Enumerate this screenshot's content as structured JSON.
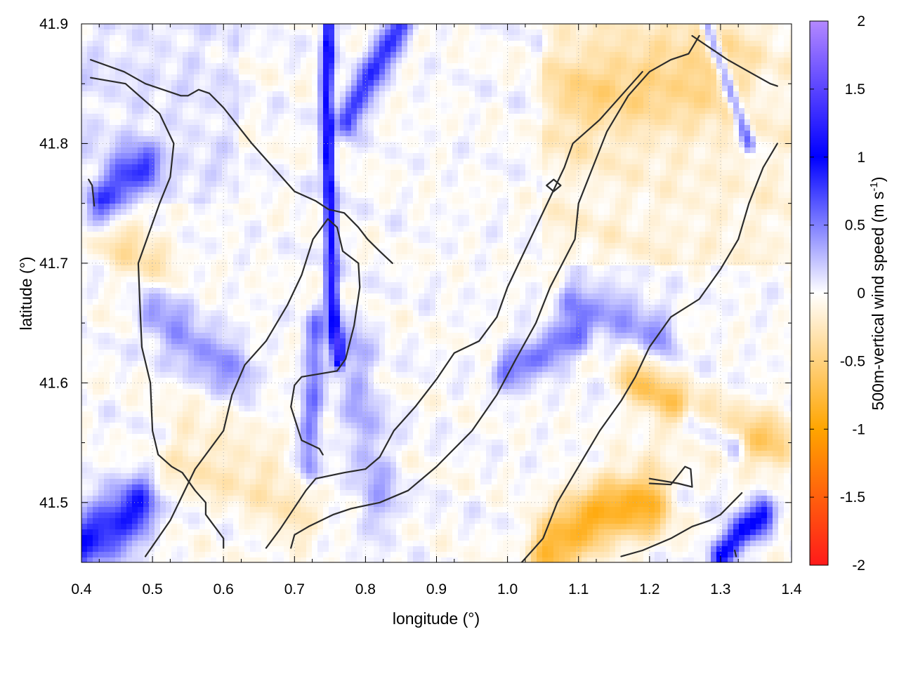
{
  "chart_data": {
    "type": "heatmap",
    "xlabel": "longitude (°)",
    "ylabel": "latitude (°)",
    "xlim": [
      0.4,
      1.4
    ],
    "ylim": [
      41.45,
      41.9
    ],
    "xticks": [
      "0.4",
      "0.5",
      "0.6",
      "0.7",
      "0.8",
      "0.9",
      "1.0",
      "1.1",
      "1.2",
      "1.3",
      "1.4"
    ],
    "yticks": [
      "41.5",
      "41.6",
      "41.7",
      "41.8",
      "41.9"
    ],
    "colorbar": {
      "label_main": "500m-vertical wind speed (m s",
      "label_sup": "-1",
      "label_end": ")",
      "range": [
        -2,
        2
      ],
      "ticks": [
        "-2",
        "-1.5",
        "-1",
        "-0.5",
        "0",
        "0.5",
        "1",
        "1.5",
        "2"
      ],
      "colors": [
        {
          "value": -2,
          "color": "#ff1a1a"
        },
        {
          "value": -1,
          "color": "#ffa500"
        },
        {
          "value": 0,
          "color": "#ffffff"
        },
        {
          "value": 1,
          "color": "#0000ff"
        },
        {
          "value": 2,
          "color": "#b388ff"
        }
      ]
    },
    "features": [
      {
        "kind": "ridge",
        "sign": 1,
        "amplitude": 1.15,
        "width": 0.006,
        "path": [
          [
            0.748,
            41.9
          ],
          [
            0.745,
            41.84
          ],
          [
            0.748,
            41.78
          ],
          [
            0.752,
            41.72
          ],
          [
            0.752,
            41.68
          ],
          [
            0.758,
            41.64
          ],
          [
            0.762,
            41.62
          ]
        ]
      },
      {
        "kind": "ridge",
        "sign": 1,
        "amplitude": 0.85,
        "width": 0.01,
        "path": [
          [
            0.775,
            41.82
          ],
          [
            0.81,
            41.86
          ],
          [
            0.85,
            41.9
          ]
        ]
      },
      {
        "kind": "ridge",
        "sign": 1,
        "amplitude": 0.7,
        "width": 0.006,
        "path": [
          [
            1.28,
            41.9
          ],
          [
            1.31,
            41.85
          ],
          [
            1.34,
            41.8
          ]
        ]
      },
      {
        "kind": "ridge",
        "sign": 1,
        "amplitude": 0.9,
        "width": 0.018,
        "path": [
          [
            0.4,
            41.465
          ],
          [
            0.44,
            41.48
          ],
          [
            0.48,
            41.495
          ]
        ]
      },
      {
        "kind": "ridge",
        "sign": 1,
        "amplitude": 0.7,
        "width": 0.014,
        "path": [
          [
            0.43,
            41.75
          ],
          [
            0.46,
            41.77
          ],
          [
            0.49,
            41.78
          ]
        ]
      },
      {
        "kind": "ridge",
        "sign": 1,
        "amplitude": 0.5,
        "width": 0.01,
        "path": [
          [
            0.73,
            41.65
          ],
          [
            0.725,
            41.58
          ],
          [
            0.72,
            41.53
          ]
        ]
      },
      {
        "kind": "ridge",
        "sign": 1,
        "amplitude": 0.3,
        "width": 0.02,
        "path": [
          [
            0.78,
            41.63
          ],
          [
            0.8,
            41.56
          ],
          [
            0.82,
            41.5
          ]
        ]
      },
      {
        "kind": "ridge",
        "sign": 1,
        "amplitude": 0.55,
        "width": 0.012,
        "path": [
          [
            1.0,
            41.61
          ],
          [
            1.05,
            41.625
          ],
          [
            1.1,
            41.64
          ]
        ]
      },
      {
        "kind": "ridge",
        "sign": 1,
        "amplitude": 0.45,
        "width": 0.012,
        "path": [
          [
            1.09,
            41.67
          ],
          [
            1.15,
            41.66
          ],
          [
            1.22,
            41.64
          ]
        ]
      },
      {
        "kind": "ridge",
        "sign": 1,
        "amplitude": 0.6,
        "width": 0.01,
        "path": [
          [
            1.26,
            41.57
          ],
          [
            1.29,
            41.56
          ],
          [
            1.32,
            41.55
          ]
        ]
      },
      {
        "kind": "ridge",
        "sign": 1,
        "amplitude": 1.0,
        "width": 0.01,
        "path": [
          [
            1.3,
            41.455
          ],
          [
            1.33,
            41.475
          ],
          [
            1.36,
            41.49
          ]
        ]
      },
      {
        "kind": "ridge",
        "sign": 1,
        "amplitude": 0.45,
        "width": 0.015,
        "path": [
          [
            0.5,
            41.66
          ],
          [
            0.56,
            41.63
          ],
          [
            0.62,
            41.61
          ]
        ]
      },
      {
        "kind": "ridge",
        "sign": -1,
        "amplitude": 0.85,
        "width": 0.02,
        "path": [
          [
            1.06,
            41.46
          ],
          [
            1.1,
            41.48
          ],
          [
            1.15,
            41.495
          ],
          [
            1.2,
            41.5
          ]
        ]
      },
      {
        "kind": "ridge",
        "sign": -1,
        "amplitude": 0.6,
        "width": 0.015,
        "path": [
          [
            1.18,
            41.6
          ],
          [
            1.24,
            41.58
          ],
          [
            1.3,
            41.56
          ],
          [
            1.38,
            41.55
          ]
        ]
      },
      {
        "kind": "ridge",
        "sign": -1,
        "amplitude": 0.35,
        "width": 0.03,
        "path": [
          [
            1.1,
            41.84
          ],
          [
            1.2,
            41.85
          ],
          [
            1.3,
            41.86
          ]
        ]
      },
      {
        "kind": "ridge",
        "sign": -1,
        "amplitude": 0.3,
        "width": 0.02,
        "path": [
          [
            0.45,
            41.72
          ],
          [
            0.5,
            41.7
          ]
        ]
      },
      {
        "kind": "ridge",
        "sign": -1,
        "amplitude": 0.25,
        "width": 0.025,
        "path": [
          [
            0.55,
            41.54
          ],
          [
            0.65,
            41.52
          ],
          [
            0.7,
            41.49
          ]
        ]
      }
    ],
    "contours": [
      [
        [
          0.413,
          41.855
        ],
        [
          0.462,
          41.85
        ],
        [
          0.51,
          41.825
        ],
        [
          0.53,
          41.8
        ],
        [
          0.525,
          41.772
        ],
        [
          0.51,
          41.75
        ],
        [
          0.48,
          41.7
        ],
        [
          0.482,
          41.67
        ],
        [
          0.485,
          41.63
        ],
        [
          0.497,
          41.6
        ],
        [
          0.5,
          41.56
        ],
        [
          0.508,
          41.54
        ],
        [
          0.527,
          41.53
        ],
        [
          0.542,
          41.525
        ],
        [
          0.56,
          41.51
        ],
        [
          0.575,
          41.5
        ],
        [
          0.575,
          41.49
        ],
        [
          0.6,
          41.47
        ],
        [
          0.6,
          41.462
        ]
      ],
      [
        [
          0.413,
          41.87
        ],
        [
          0.46,
          41.86
        ],
        [
          0.49,
          41.85
        ],
        [
          0.54,
          41.84
        ],
        [
          0.55,
          41.84
        ],
        [
          0.565,
          41.845
        ],
        [
          0.58,
          41.842
        ],
        [
          0.6,
          41.83
        ],
        [
          0.64,
          41.8
        ],
        [
          0.7,
          41.76
        ],
        [
          0.73,
          41.752
        ],
        [
          0.748,
          41.745
        ],
        [
          0.77,
          41.742
        ],
        [
          0.79,
          41.73
        ],
        [
          0.803,
          41.72
        ],
        [
          0.82,
          41.71
        ],
        [
          0.838,
          41.7
        ]
      ],
      [
        [
          0.41,
          41.77
        ],
        [
          0.415,
          41.765
        ],
        [
          0.418,
          41.748
        ]
      ],
      [
        [
          0.49,
          41.455
        ],
        [
          0.525,
          41.485
        ],
        [
          0.56,
          41.528
        ],
        [
          0.6,
          41.56
        ],
        [
          0.612,
          41.59
        ],
        [
          0.63,
          41.615
        ],
        [
          0.66,
          41.635
        ],
        [
          0.69,
          41.665
        ],
        [
          0.71,
          41.69
        ],
        [
          0.726,
          41.72
        ],
        [
          0.747,
          41.737
        ],
        [
          0.76,
          41.73
        ],
        [
          0.768,
          41.71
        ],
        [
          0.79,
          41.7
        ],
        [
          0.792,
          41.68
        ],
        [
          0.784,
          41.648
        ],
        [
          0.772,
          41.62
        ],
        [
          0.76,
          41.61
        ],
        [
          0.71,
          41.605
        ],
        [
          0.7,
          41.598
        ],
        [
          0.695,
          41.58
        ],
        [
          0.71,
          41.552
        ],
        [
          0.735,
          41.545
        ],
        [
          0.74,
          41.54
        ]
      ],
      [
        [
          0.66,
          41.462
        ],
        [
          0.68,
          41.478
        ],
        [
          0.716,
          41.51
        ],
        [
          0.73,
          41.52
        ],
        [
          0.77,
          41.525
        ],
        [
          0.8,
          41.528
        ],
        [
          0.82,
          41.538
        ],
        [
          0.84,
          41.56
        ],
        [
          0.87,
          41.58
        ],
        [
          0.9,
          41.603
        ],
        [
          0.925,
          41.625
        ],
        [
          0.96,
          41.635
        ],
        [
          0.985,
          41.655
        ],
        [
          1.0,
          41.68
        ],
        [
          1.02,
          41.705
        ],
        [
          1.04,
          41.73
        ],
        [
          1.06,
          41.755
        ],
        [
          1.08,
          41.78
        ],
        [
          1.092,
          41.8
        ],
        [
          1.13,
          41.82
        ],
        [
          1.16,
          41.84
        ],
        [
          1.19,
          41.86
        ]
      ],
      [
        [
          0.695,
          41.462
        ],
        [
          0.7,
          41.473
        ],
        [
          0.72,
          41.48
        ],
        [
          0.755,
          41.49
        ],
        [
          0.78,
          41.495
        ],
        [
          0.82,
          41.5
        ],
        [
          0.86,
          41.51
        ],
        [
          0.9,
          41.53
        ],
        [
          0.95,
          41.56
        ],
        [
          0.985,
          41.59
        ],
        [
          1.012,
          41.62
        ],
        [
          1.04,
          41.65
        ],
        [
          1.06,
          41.68
        ],
        [
          1.095,
          41.72
        ],
        [
          1.1,
          41.75
        ],
        [
          1.12,
          41.78
        ],
        [
          1.14,
          41.81
        ],
        [
          1.17,
          41.84
        ],
        [
          1.2,
          41.86
        ],
        [
          1.23,
          41.87
        ],
        [
          1.255,
          41.875
        ],
        [
          1.27,
          41.89
        ]
      ],
      [
        [
          1.055,
          41.765
        ],
        [
          1.065,
          41.77
        ],
        [
          1.075,
          41.765
        ],
        [
          1.065,
          41.76
        ],
        [
          1.055,
          41.765
        ]
      ],
      [
        [
          1.16,
          41.455
        ],
        [
          1.19,
          41.46
        ],
        [
          1.23,
          41.47
        ],
        [
          1.26,
          41.48
        ],
        [
          1.285,
          41.485
        ],
        [
          1.3,
          41.49
        ],
        [
          1.33,
          41.508
        ]
      ],
      [
        [
          1.2,
          41.52
        ],
        [
          1.24,
          41.516
        ],
        [
          1.26,
          41.513
        ],
        [
          1.258,
          41.528
        ],
        [
          1.25,
          41.53
        ],
        [
          1.23,
          41.515
        ],
        [
          1.2,
          41.516
        ]
      ],
      [
        [
          1.02,
          41.45
        ],
        [
          1.05,
          41.47
        ],
        [
          1.07,
          41.5
        ],
        [
          1.1,
          41.53
        ],
        [
          1.13,
          41.56
        ],
        [
          1.16,
          41.585
        ],
        [
          1.18,
          41.605
        ],
        [
          1.2,
          41.63
        ],
        [
          1.23,
          41.655
        ],
        [
          1.27,
          41.67
        ],
        [
          1.3,
          41.695
        ],
        [
          1.325,
          41.72
        ],
        [
          1.34,
          41.75
        ],
        [
          1.36,
          41.78
        ],
        [
          1.38,
          41.8
        ]
      ],
      [
        [
          1.26,
          41.89
        ],
        [
          1.31,
          41.87
        ],
        [
          1.34,
          41.86
        ],
        [
          1.37,
          41.85
        ],
        [
          1.38,
          41.848
        ]
      ],
      [
        [
          1.32,
          41.46
        ],
        [
          1.322,
          41.455
        ]
      ]
    ]
  }
}
